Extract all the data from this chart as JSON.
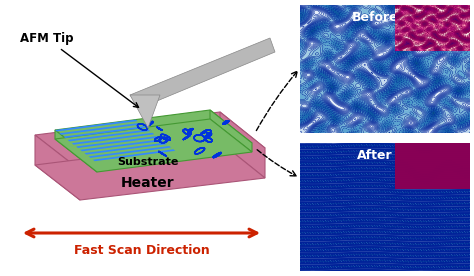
{
  "afm_tip_label": "AFM Tip",
  "substrate_label": "Substrate",
  "heater_label": "Heater",
  "fast_scan_label": "Fast Scan Direction",
  "before_label": "Before",
  "after_label": "After",
  "heater_color": "#cc7799",
  "substrate_color": "#77bb66",
  "tip_color": "#aaaaaa",
  "bg_color": "#ffffff",
  "arrow_color": "#cc2200",
  "stripe_blue": "#2266ee",
  "chain_blue": "#0033dd"
}
